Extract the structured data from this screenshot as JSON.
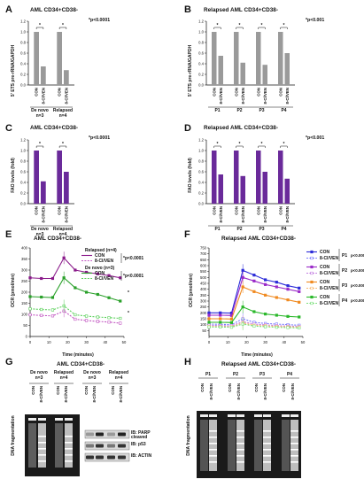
{
  "panels": {
    "A": {
      "letter": "A",
      "title": "AML CD34+CD38-",
      "pval": "*p<0.0001",
      "ylabel": "5' ETS pre-rRNA/GAPDH"
    },
    "B": {
      "letter": "B",
      "title": "Relapsed AML CD34+CD38-",
      "pval": "*p<0.001",
      "ylabel": "5' ETS pre-rRNA/GAPDH"
    },
    "C": {
      "letter": "C",
      "title": "AML CD34+CD38-",
      "pval": "*p<0.0001",
      "ylabel": "FAO levels (fold)"
    },
    "D": {
      "letter": "D",
      "title": "Relapsed AML CD34+CD38-",
      "pval": "*p<0.001",
      "ylabel": "FAO levels (fold)"
    },
    "E": {
      "letter": "E",
      "title": "AML CD34+CD38-",
      "xlabel": "Time (minutes)",
      "ylabel": "OCR (pmol/min)"
    },
    "F": {
      "letter": "F",
      "title": "Relapsed AML CD34+CD38-",
      "xlabel": "Time (minutes)",
      "ylabel": "OCR (pmol/min)"
    },
    "G": {
      "letter": "G",
      "title": "AML CD34+CD38-",
      "ylabel": "DNA fragmentation",
      "groups": [
        "De novo\nn=3",
        "Relapsed\nn=4",
        "De novo\nn=3",
        "Relapsed\nn=4"
      ],
      "lanes": [
        "CON",
        "8-Cl/VEN",
        "CON",
        "8-Cl/VEN"
      ],
      "blots": [
        "IB: PARP\ncleaved",
        "IB: p53",
        "IB: ACTIN"
      ]
    },
    "H": {
      "letter": "H",
      "title": "Relapsed AML CD34+CD38-",
      "ylabel": "DNA fragmentation",
      "groups": [
        "P1",
        "P2",
        "P3",
        "P4"
      ],
      "lanes": [
        "CON",
        "8-Cl/VEN"
      ]
    }
  },
  "chart_data": [
    {
      "panel": "A",
      "type": "bar",
      "categories": [
        "De novo n=3",
        "Relapsed n=4"
      ],
      "series": [
        {
          "name": "CON",
          "values": [
            1.0,
            1.0
          ]
        },
        {
          "name": "8-Cl/VEN",
          "values": [
            0.35,
            0.28
          ]
        }
      ],
      "ylim": [
        0,
        1.2
      ],
      "yticks": [
        0.0,
        0.2,
        0.4,
        0.6,
        0.8,
        1.0,
        1.2
      ],
      "color": "#9a9a9a",
      "annotation": "*p<0.0001"
    },
    {
      "panel": "B",
      "type": "bar",
      "categories": [
        "P1",
        "P2",
        "P3",
        "P4"
      ],
      "series": [
        {
          "name": "CON",
          "values": [
            1.0,
            1.0,
            1.0,
            1.0
          ]
        },
        {
          "name": "8-Cl/VEN",
          "values": [
            0.55,
            0.42,
            0.38,
            0.6
          ]
        }
      ],
      "ylim": [
        0,
        1.2
      ],
      "yticks": [
        0.0,
        0.2,
        0.4,
        0.6,
        0.8,
        1.0,
        1.2
      ],
      "color": "#9a9a9a",
      "annotation": "*p<0.001"
    },
    {
      "panel": "C",
      "type": "bar",
      "categories": [
        "De novo n=3",
        "Relapsed n=4"
      ],
      "series": [
        {
          "name": "CON",
          "values": [
            1.0,
            1.0
          ]
        },
        {
          "name": "8-Cl/VEN",
          "values": [
            0.42,
            0.6
          ]
        }
      ],
      "ylim": [
        0,
        1.2
      ],
      "yticks": [
        0.0,
        0.2,
        0.4,
        0.6,
        0.8,
        1.0,
        1.2
      ],
      "color": "#6a2a9a",
      "annotation": "*p<0.0001"
    },
    {
      "panel": "D",
      "type": "bar",
      "categories": [
        "P1",
        "P2",
        "P3",
        "P4"
      ],
      "series": [
        {
          "name": "CON",
          "values": [
            1.0,
            1.0,
            1.0,
            1.0
          ]
        },
        {
          "name": "8-Cl/VEN",
          "values": [
            0.55,
            0.52,
            0.6,
            0.47
          ]
        }
      ],
      "ylim": [
        0,
        1.2
      ],
      "yticks": [
        0.0,
        0.2,
        0.4,
        0.6,
        0.8,
        1.0,
        1.2
      ],
      "color": "#6a2a9a",
      "annotation": "*p<0.001"
    },
    {
      "panel": "E",
      "type": "line",
      "x": [
        0,
        6,
        12,
        18,
        24,
        30,
        36,
        42,
        48
      ],
      "xticks": [
        0,
        10,
        20,
        30,
        40,
        50
      ],
      "ylim": [
        0,
        400
      ],
      "yticks": [
        0,
        50,
        100,
        150,
        200,
        250,
        300,
        350,
        400
      ],
      "legend": [
        {
          "group": "Relapsed (n=4)",
          "entries": [
            "CON",
            "8-Cl/VEN"
          ],
          "pval": "*p<0.0001"
        },
        {
          "group": "De novo (n=3)",
          "entries": [
            "CON",
            "8-Cl/VEN"
          ],
          "pval": "*p<0.0001"
        }
      ],
      "series": [
        {
          "name": "Relapsed CON",
          "color": "#8a1a8a",
          "dashed": false,
          "values": [
            265,
            262,
            262,
            355,
            300,
            290,
            283,
            275,
            265
          ]
        },
        {
          "name": "Relapsed 8-Cl/VEN",
          "color": "#c256c2",
          "dashed": true,
          "values": [
            98,
            95,
            93,
            115,
            78,
            72,
            68,
            65,
            60
          ]
        },
        {
          "name": "De novo CON",
          "color": "#2aa02a",
          "dashed": false,
          "values": [
            180,
            178,
            176,
            265,
            220,
            200,
            190,
            175,
            160
          ]
        },
        {
          "name": "De novo 8-Cl/VEN",
          "color": "#5ad05a",
          "dashed": true,
          "values": [
            125,
            122,
            120,
            138,
            98,
            92,
            88,
            85,
            82
          ]
        }
      ]
    },
    {
      "panel": "F",
      "type": "line",
      "x": [
        0,
        6,
        12,
        18,
        24,
        30,
        36,
        42,
        48
      ],
      "xticks": [
        0,
        10,
        20,
        30,
        40,
        50
      ],
      "ylim": [
        0,
        750
      ],
      "yticks": [
        50,
        100,
        150,
        200,
        250,
        300,
        350,
        400,
        450,
        500,
        550,
        600,
        650,
        700,
        750
      ],
      "legend": [
        {
          "group": "P1",
          "entries": [
            "CON",
            "8-Cl/VEN"
          ],
          "pval": "p<0.0003"
        },
        {
          "group": "P2",
          "entries": [
            "CON",
            "8-Cl/VEN"
          ],
          "pval": "p<0.0007"
        },
        {
          "group": "P3",
          "entries": [
            "CON",
            "8-Cl/VEN"
          ],
          "pval": "p<0.0005"
        },
        {
          "group": "P4",
          "entries": [
            "CON",
            "8-Cl/VEN"
          ],
          "pval": "p<0.0002"
        }
      ],
      "series": [
        {
          "name": "P1 CON",
          "color": "#2a2ad8",
          "dashed": false,
          "values": [
            200,
            200,
            198,
            560,
            520,
            480,
            460,
            430,
            410
          ]
        },
        {
          "name": "P1 8-Cl/VEN",
          "color": "#7a7aff",
          "dashed": true,
          "values": [
            105,
            103,
            100,
            150,
            120,
            110,
            105,
            100,
            95
          ]
        },
        {
          "name": "P2 CON",
          "color": "#9a2ac8",
          "dashed": false,
          "values": [
            180,
            180,
            178,
            500,
            470,
            440,
            420,
            400,
            380
          ]
        },
        {
          "name": "P2 8-Cl/VEN",
          "color": "#c27ae0",
          "dashed": true,
          "values": [
            95,
            92,
            90,
            125,
            105,
            98,
            92,
            88,
            85
          ]
        },
        {
          "name": "P3 CON",
          "color": "#f08a20",
          "dashed": false,
          "values": [
            150,
            150,
            148,
            420,
            380,
            350,
            330,
            310,
            290
          ]
        },
        {
          "name": "P3 8-Cl/VEN",
          "color": "#f8b870",
          "dashed": true,
          "values": [
            85,
            84,
            82,
            115,
            95,
            90,
            85,
            82,
            80
          ]
        },
        {
          "name": "P4 CON",
          "color": "#2ab82a",
          "dashed": false,
          "values": [
            120,
            120,
            118,
            250,
            210,
            190,
            180,
            170,
            165
          ]
        },
        {
          "name": "P4 8-Cl/VEN",
          "color": "#7ae07a",
          "dashed": true,
          "values": [
            80,
            80,
            78,
            105,
            88,
            82,
            78,
            75,
            72
          ]
        }
      ]
    }
  ]
}
